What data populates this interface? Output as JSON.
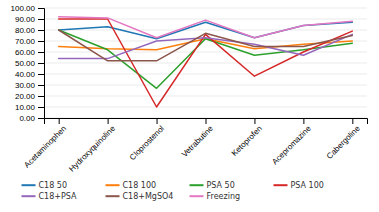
{
  "chart_data": {
    "type": "line",
    "categories": [
      "Acetaminophen",
      "Hydroxyquinoline",
      "Cloprostenol",
      "Vetrabutine",
      "Ketoprofen",
      "Acepromazine",
      "Cabergoline"
    ],
    "series": [
      {
        "name": "C18 50",
        "values": [
          80,
          83,
          72,
          87,
          73,
          84,
          87
        ]
      },
      {
        "name": "C18 100",
        "values": [
          65,
          63,
          62,
          72,
          63,
          67,
          70
        ]
      },
      {
        "name": "PSA 50",
        "values": [
          80,
          62,
          27,
          72,
          57,
          62,
          68
        ]
      },
      {
        "name": "PSA 100",
        "values": [
          90,
          90,
          10,
          76,
          38,
          60,
          79
        ]
      },
      {
        "name": "C18+PSA",
        "values": [
          54,
          54,
          70,
          73,
          67,
          57,
          76
        ]
      },
      {
        "name": "C18+MgSO4",
        "values": [
          80,
          52,
          52,
          77,
          65,
          65,
          75
        ]
      },
      {
        "name": "Freezing",
        "values": [
          92,
          91,
          73,
          89,
          73,
          84,
          88
        ]
      }
    ],
    "ylim": [
      0,
      100
    ],
    "yticks": [
      {
        "value": 0,
        "label": "0.00"
      },
      {
        "value": 10,
        "label": "10.00"
      },
      {
        "value": 20,
        "label": "20.00"
      },
      {
        "value": 30,
        "label": "30.00"
      },
      {
        "value": 40,
        "label": "40.00"
      },
      {
        "value": 50,
        "label": "50.00"
      },
      {
        "value": 60,
        "label": "60.00"
      },
      {
        "value": 70,
        "label": "70.00"
      },
      {
        "value": 80,
        "label": "80.00"
      },
      {
        "value": 90,
        "label": "90.00"
      },
      {
        "value": 100,
        "label": "100.00"
      }
    ],
    "grid": true,
    "legend": "bottom"
  }
}
